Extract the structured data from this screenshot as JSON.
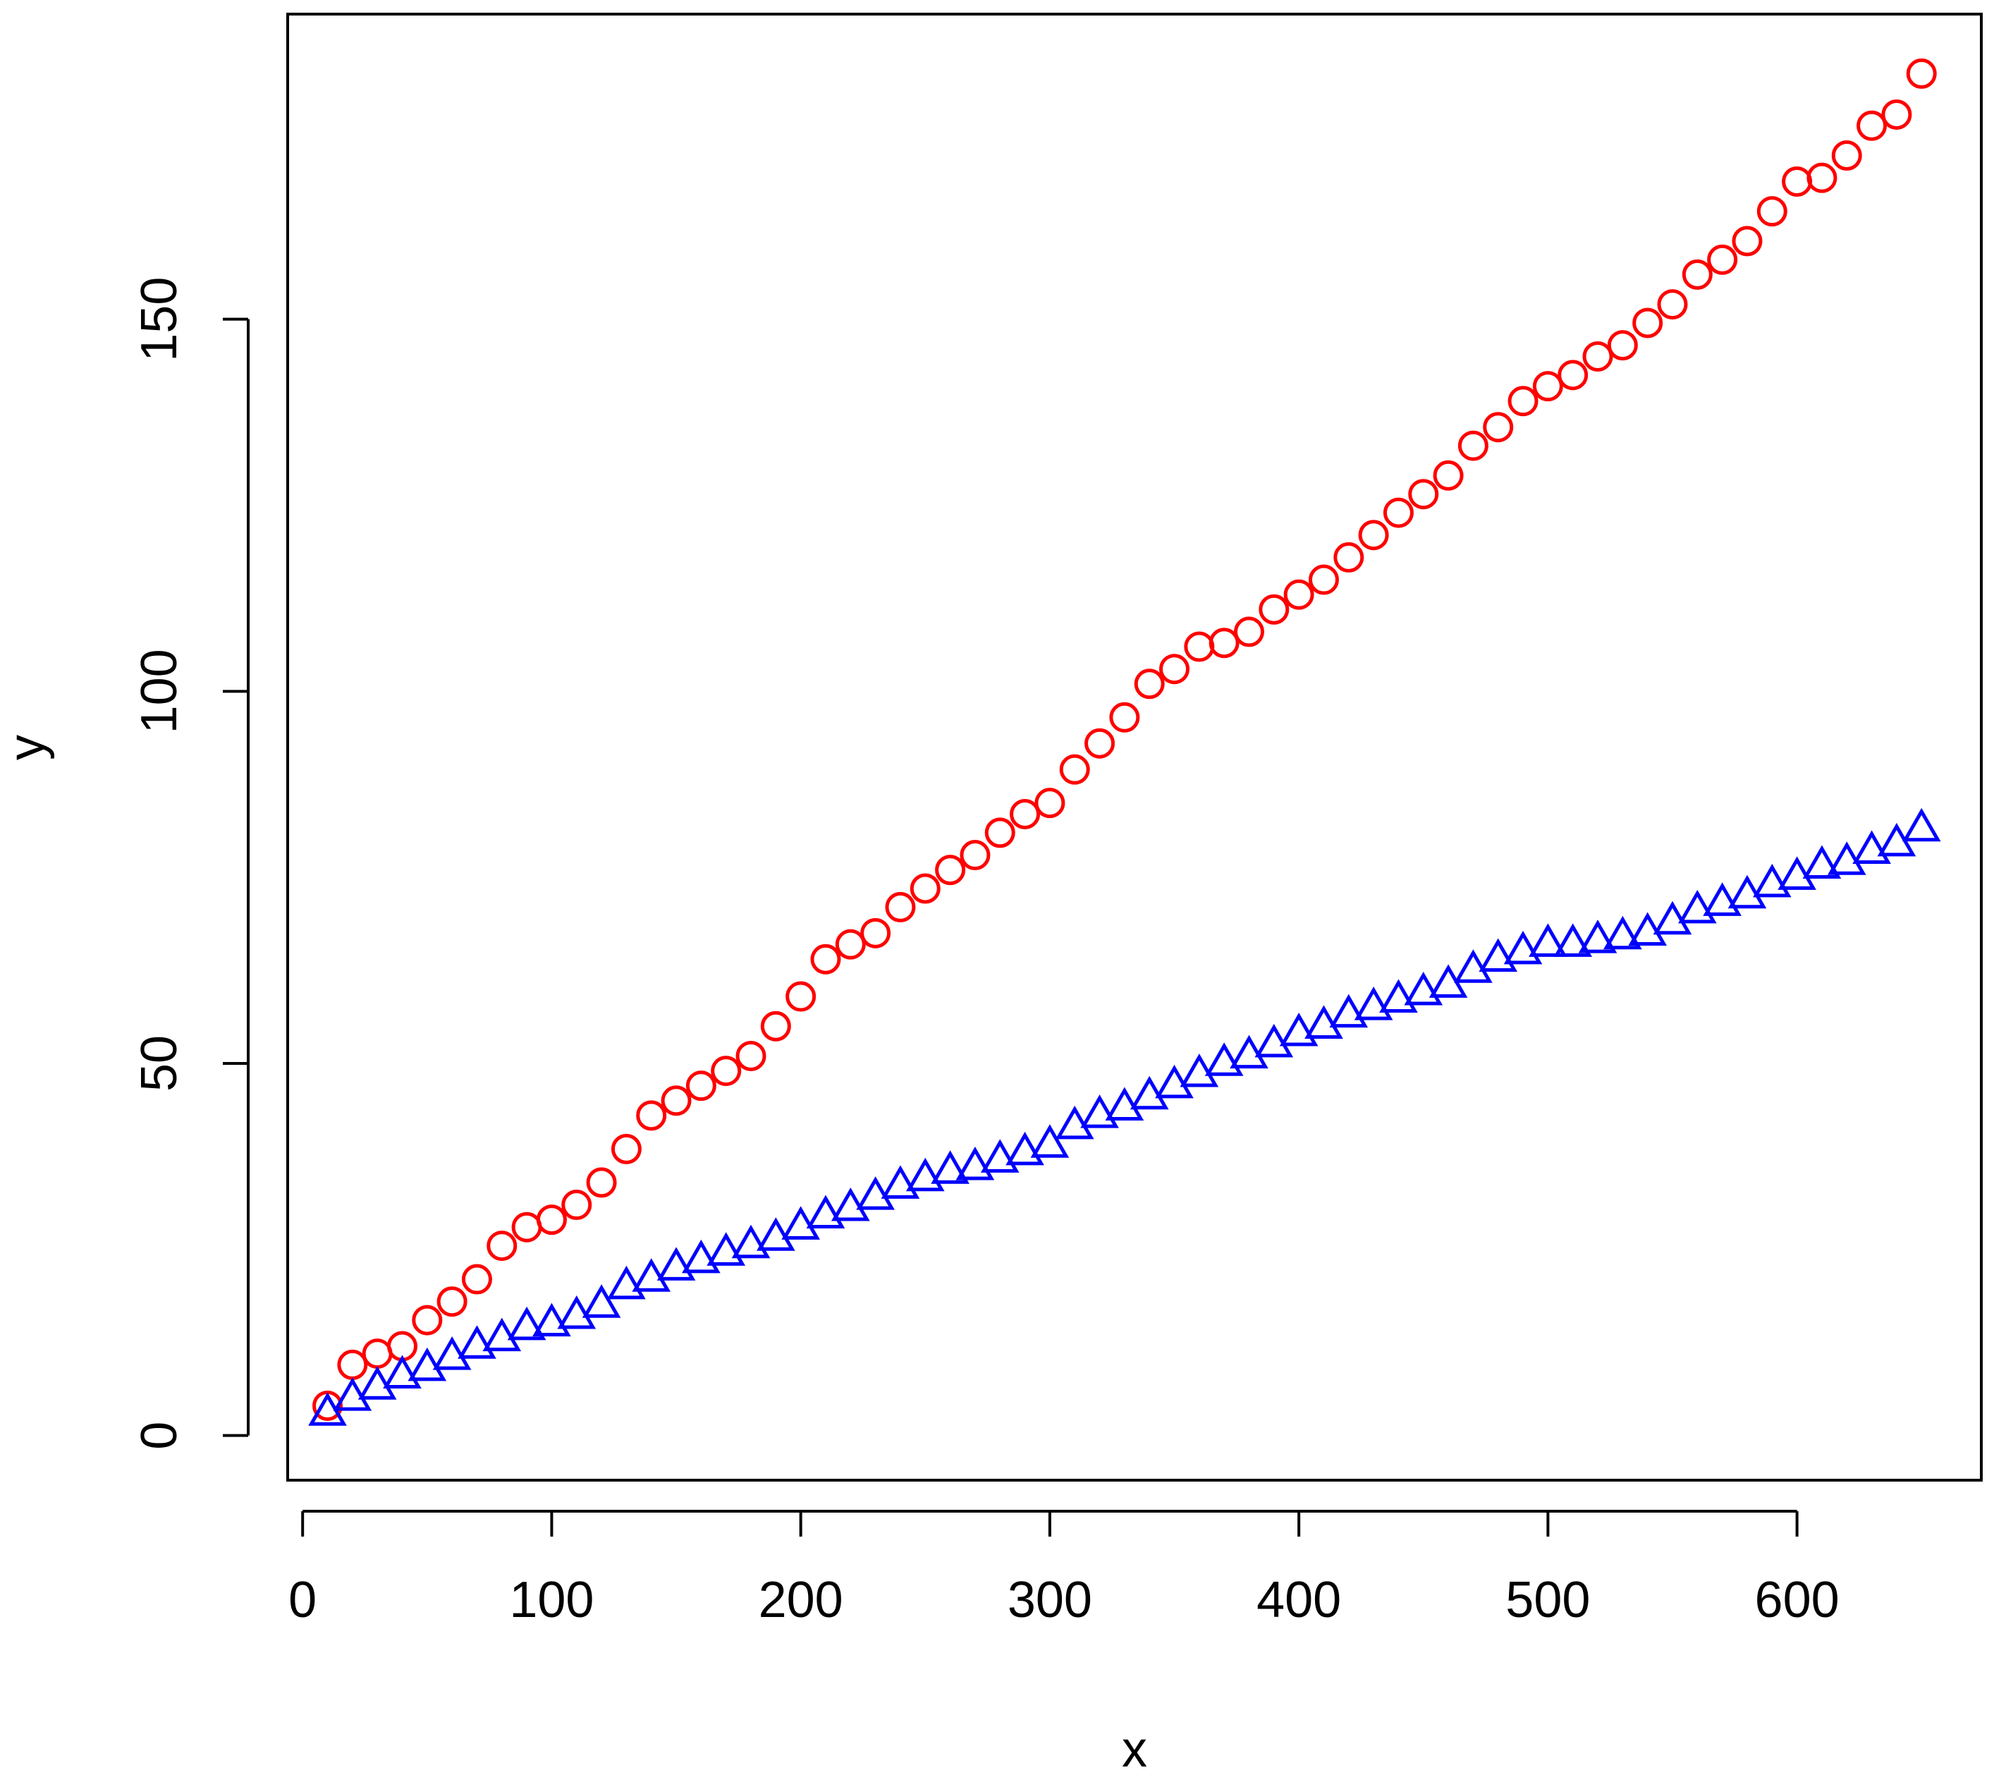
{
  "chart_data": {
    "type": "scatter",
    "title": "",
    "xlabel": "x",
    "ylabel": "y",
    "xlim": [
      -6,
      674
    ],
    "ylim": [
      -6,
      191
    ],
    "x_ticks": [
      0,
      100,
      200,
      300,
      400,
      500,
      600
    ],
    "x_tick_labels": [
      "0",
      "100",
      "200",
      "300",
      "400",
      "500",
      "600"
    ],
    "y_ticks": [
      0,
      50,
      100,
      150
    ],
    "y_tick_labels": [
      "0",
      "50",
      "100",
      "150"
    ],
    "grid": false,
    "legend": "none",
    "x": [
      10,
      20,
      30,
      40,
      50,
      60,
      70,
      80,
      90,
      100,
      110,
      120,
      130,
      140,
      150,
      160,
      170,
      180,
      190,
      200,
      210,
      220,
      230,
      240,
      250,
      260,
      270,
      280,
      290,
      300,
      310,
      320,
      330,
      340,
      350,
      360,
      370,
      380,
      390,
      400,
      410,
      420,
      430,
      440,
      450,
      460,
      470,
      480,
      490,
      500,
      510,
      520,
      530,
      540,
      550,
      560,
      570,
      580,
      590,
      600,
      610,
      620,
      630,
      640,
      650
    ],
    "series": [
      {
        "color": "#ff0000",
        "marker": "circle",
        "values": [
          4,
          9.5,
          11,
          12,
          15.5,
          18,
          21,
          25.5,
          28,
          29,
          31,
          34,
          38.5,
          43,
          45,
          47,
          49,
          51,
          55,
          59,
          64,
          66,
          67.5,
          71,
          73.5,
          76,
          78,
          81,
          83.5,
          85,
          89.5,
          93,
          96.5,
          101,
          103,
          106,
          106.5,
          108,
          111,
          113,
          115,
          118,
          121,
          124,
          126.5,
          129,
          133,
          135.5,
          139,
          141,
          142.5,
          145,
          146.5,
          149.5,
          152,
          156,
          158,
          160.5,
          164.5,
          168.5,
          169,
          172,
          176,
          177.5,
          183
        ]
      },
      {
        "color": "#0000ff",
        "marker": "triangle",
        "values": [
          3,
          5,
          6.5,
          8,
          9,
          10.5,
          12,
          13,
          14.5,
          15,
          16,
          17.5,
          20,
          21,
          22.5,
          23.5,
          24.5,
          25.5,
          26.5,
          28,
          29.5,
          30.5,
          32,
          33.5,
          34.5,
          35.5,
          36,
          37,
          38,
          39,
          41.5,
          43,
          44,
          45.5,
          47,
          48.5,
          50,
          51,
          52.5,
          54,
          55,
          56.5,
          57.5,
          58.5,
          59.5,
          60.5,
          62.5,
          64,
          65,
          66,
          66,
          66.5,
          67,
          67.5,
          69,
          70.5,
          71.5,
          72.5,
          74,
          75,
          76.5,
          77,
          78.5,
          79.5,
          81.5
        ]
      }
    ]
  }
}
